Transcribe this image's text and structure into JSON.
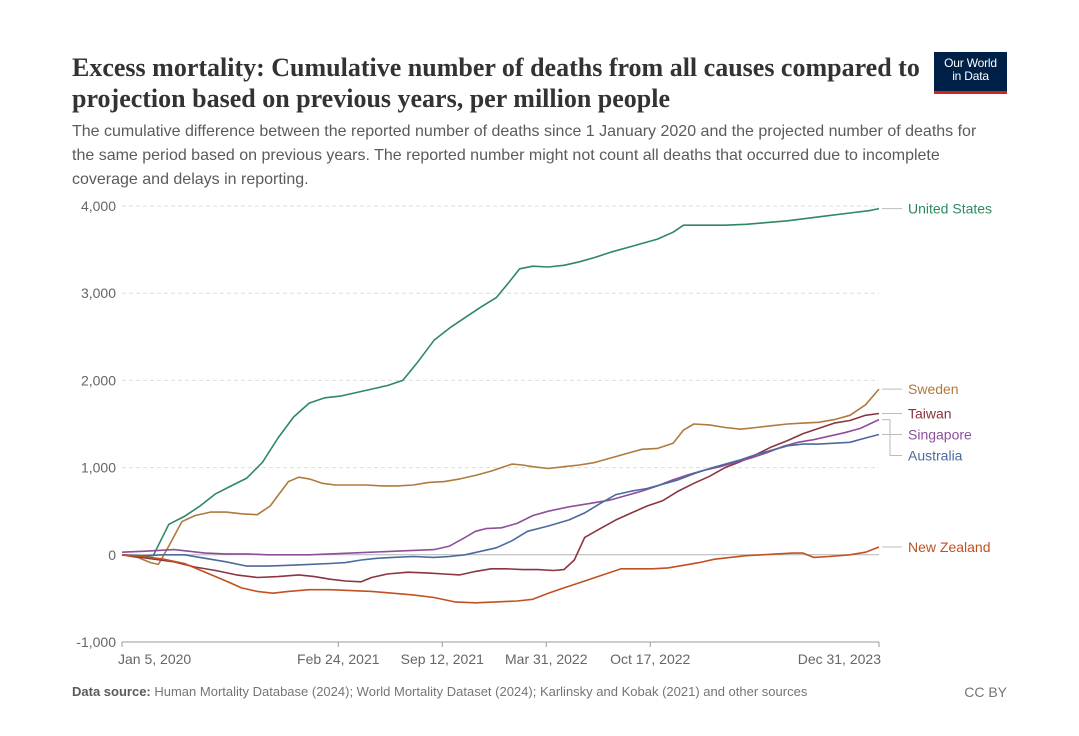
{
  "title": "Excess mortality: Cumulative number of deaths from all causes compared to projection based on previous years, per million people",
  "subtitle": "The cumulative difference between the reported number of deaths since 1 January 2020 and the projected number of deaths for the same period based on previous years. The reported number might not count all deaths that occurred due to incomplete coverage and delays in reporting.",
  "logo": {
    "line1": "Our World",
    "line2": "in Data",
    "bg": "#002147",
    "accent": "#ce261e"
  },
  "footer": {
    "source_label": "Data source:",
    "source_text": " Human Mortality Database (2024); World Mortality Dataset (2024); Karlinsky and Kobak (2021) and other sources",
    "license": "CC BY"
  },
  "chart_data": {
    "type": "line",
    "title": "Excess mortality: Cumulative number of deaths from all causes compared to projection based on previous years, per million people",
    "xlabel": "",
    "ylabel": "",
    "xlim": [
      0,
      1456
    ],
    "ylim": [
      -1000,
      4000
    ],
    "yticks": [
      {
        "value": -1000,
        "label": "-1,000"
      },
      {
        "value": 0,
        "label": "0"
      },
      {
        "value": 1000,
        "label": "1,000"
      },
      {
        "value": 2000,
        "label": "2,000"
      },
      {
        "value": 3000,
        "label": "3,000"
      },
      {
        "value": 4000,
        "label": "4,000"
      }
    ],
    "xticks": [
      {
        "value": 0,
        "label": "Jan 5, 2020"
      },
      {
        "value": 416,
        "label": "Feb 24, 2021"
      },
      {
        "value": 616,
        "label": "Sep 12, 2021"
      },
      {
        "value": 816,
        "label": "Mar 31, 2022"
      },
      {
        "value": 1016,
        "label": "Oct 17, 2022"
      },
      {
        "value": 1456,
        "label": "Dec 31, 2023"
      }
    ],
    "series": [
      {
        "name": "United States",
        "color": "#2e8960",
        "points": [
          [
            0,
            0
          ],
          [
            30,
            -20
          ],
          [
            60,
            -10
          ],
          [
            90,
            350
          ],
          [
            120,
            440
          ],
          [
            150,
            560
          ],
          [
            180,
            700
          ],
          [
            210,
            790
          ],
          [
            240,
            880
          ],
          [
            270,
            1060
          ],
          [
            300,
            1340
          ],
          [
            330,
            1580
          ],
          [
            360,
            1740
          ],
          [
            390,
            1800
          ],
          [
            420,
            1820
          ],
          [
            450,
            1860
          ],
          [
            480,
            1900
          ],
          [
            510,
            1940
          ],
          [
            540,
            2000
          ],
          [
            570,
            2220
          ],
          [
            600,
            2460
          ],
          [
            630,
            2600
          ],
          [
            660,
            2720
          ],
          [
            690,
            2840
          ],
          [
            720,
            2950
          ],
          [
            745,
            3130
          ],
          [
            765,
            3280
          ],
          [
            790,
            3310
          ],
          [
            820,
            3300
          ],
          [
            850,
            3320
          ],
          [
            880,
            3360
          ],
          [
            910,
            3410
          ],
          [
            940,
            3470
          ],
          [
            970,
            3520
          ],
          [
            1000,
            3570
          ],
          [
            1030,
            3620
          ],
          [
            1060,
            3700
          ],
          [
            1080,
            3780
          ],
          [
            1120,
            3780
          ],
          [
            1160,
            3780
          ],
          [
            1200,
            3790
          ],
          [
            1240,
            3810
          ],
          [
            1280,
            3830
          ],
          [
            1320,
            3860
          ],
          [
            1360,
            3890
          ],
          [
            1400,
            3920
          ],
          [
            1440,
            3950
          ],
          [
            1456,
            3970
          ]
        ]
      },
      {
        "name": "Sweden",
        "color": "#b07a3d",
        "points": [
          [
            0,
            0
          ],
          [
            30,
            -30
          ],
          [
            55,
            -90
          ],
          [
            70,
            -110
          ],
          [
            90,
            100
          ],
          [
            115,
            380
          ],
          [
            140,
            450
          ],
          [
            170,
            490
          ],
          [
            200,
            490
          ],
          [
            230,
            470
          ],
          [
            260,
            460
          ],
          [
            285,
            560
          ],
          [
            305,
            720
          ],
          [
            320,
            840
          ],
          [
            340,
            890
          ],
          [
            360,
            870
          ],
          [
            385,
            820
          ],
          [
            410,
            800
          ],
          [
            440,
            800
          ],
          [
            470,
            800
          ],
          [
            500,
            790
          ],
          [
            530,
            790
          ],
          [
            560,
            800
          ],
          [
            590,
            830
          ],
          [
            620,
            840
          ],
          [
            650,
            870
          ],
          [
            680,
            910
          ],
          [
            710,
            960
          ],
          [
            730,
            1000
          ],
          [
            750,
            1040
          ],
          [
            770,
            1030
          ],
          [
            790,
            1010
          ],
          [
            820,
            990
          ],
          [
            850,
            1010
          ],
          [
            880,
            1030
          ],
          [
            910,
            1060
          ],
          [
            940,
            1110
          ],
          [
            970,
            1160
          ],
          [
            1000,
            1210
          ],
          [
            1030,
            1220
          ],
          [
            1060,
            1280
          ],
          [
            1080,
            1430
          ],
          [
            1100,
            1500
          ],
          [
            1130,
            1490
          ],
          [
            1160,
            1460
          ],
          [
            1190,
            1440
          ],
          [
            1220,
            1460
          ],
          [
            1250,
            1480
          ],
          [
            1280,
            1500
          ],
          [
            1310,
            1510
          ],
          [
            1340,
            1520
          ],
          [
            1370,
            1550
          ],
          [
            1400,
            1600
          ],
          [
            1430,
            1720
          ],
          [
            1456,
            1900
          ]
        ]
      },
      {
        "name": "Taiwan",
        "color": "#8c3540",
        "points": [
          [
            0,
            0
          ],
          [
            50,
            -40
          ],
          [
            100,
            -80
          ],
          [
            140,
            -140
          ],
          [
            180,
            -180
          ],
          [
            220,
            -230
          ],
          [
            260,
            -260
          ],
          [
            300,
            -250
          ],
          [
            340,
            -230
          ],
          [
            370,
            -250
          ],
          [
            400,
            -280
          ],
          [
            430,
            -300
          ],
          [
            460,
            -310
          ],
          [
            480,
            -260
          ],
          [
            510,
            -220
          ],
          [
            550,
            -200
          ],
          [
            590,
            -210
          ],
          [
            620,
            -220
          ],
          [
            650,
            -230
          ],
          [
            680,
            -190
          ],
          [
            710,
            -160
          ],
          [
            740,
            -160
          ],
          [
            770,
            -170
          ],
          [
            800,
            -170
          ],
          [
            830,
            -180
          ],
          [
            850,
            -170
          ],
          [
            870,
            -60
          ],
          [
            890,
            200
          ],
          [
            920,
            300
          ],
          [
            950,
            400
          ],
          [
            980,
            480
          ],
          [
            1010,
            560
          ],
          [
            1040,
            620
          ],
          [
            1070,
            730
          ],
          [
            1100,
            820
          ],
          [
            1130,
            900
          ],
          [
            1160,
            1000
          ],
          [
            1190,
            1070
          ],
          [
            1220,
            1150
          ],
          [
            1250,
            1240
          ],
          [
            1280,
            1310
          ],
          [
            1310,
            1390
          ],
          [
            1340,
            1450
          ],
          [
            1370,
            1510
          ],
          [
            1400,
            1540
          ],
          [
            1430,
            1600
          ],
          [
            1456,
            1620
          ]
        ]
      },
      {
        "name": "Singapore",
        "color": "#8e4e9c",
        "points": [
          [
            0,
            30
          ],
          [
            40,
            40
          ],
          [
            70,
            50
          ],
          [
            100,
            60
          ],
          [
            130,
            40
          ],
          [
            160,
            20
          ],
          [
            200,
            10
          ],
          [
            240,
            10
          ],
          [
            280,
            0
          ],
          [
            320,
            0
          ],
          [
            360,
            0
          ],
          [
            400,
            10
          ],
          [
            440,
            20
          ],
          [
            480,
            30
          ],
          [
            520,
            40
          ],
          [
            560,
            50
          ],
          [
            600,
            60
          ],
          [
            630,
            100
          ],
          [
            660,
            200
          ],
          [
            680,
            270
          ],
          [
            700,
            300
          ],
          [
            730,
            310
          ],
          [
            760,
            360
          ],
          [
            790,
            450
          ],
          [
            820,
            500
          ],
          [
            860,
            550
          ],
          [
            900,
            590
          ],
          [
            940,
            630
          ],
          [
            970,
            680
          ],
          [
            1000,
            730
          ],
          [
            1030,
            790
          ],
          [
            1060,
            860
          ],
          [
            1090,
            920
          ],
          [
            1120,
            970
          ],
          [
            1150,
            1010
          ],
          [
            1180,
            1060
          ],
          [
            1210,
            1110
          ],
          [
            1240,
            1170
          ],
          [
            1270,
            1240
          ],
          [
            1300,
            1290
          ],
          [
            1330,
            1320
          ],
          [
            1360,
            1360
          ],
          [
            1390,
            1400
          ],
          [
            1420,
            1450
          ],
          [
            1456,
            1550
          ]
        ]
      },
      {
        "name": "Australia",
        "color": "#4c6a9c",
        "points": [
          [
            0,
            0
          ],
          [
            40,
            -10
          ],
          [
            80,
            0
          ],
          [
            120,
            0
          ],
          [
            160,
            -40
          ],
          [
            200,
            -80
          ],
          [
            240,
            -130
          ],
          [
            280,
            -130
          ],
          [
            320,
            -120
          ],
          [
            360,
            -110
          ],
          [
            400,
            -100
          ],
          [
            430,
            -90
          ],
          [
            460,
            -60
          ],
          [
            490,
            -40
          ],
          [
            520,
            -30
          ],
          [
            560,
            -20
          ],
          [
            600,
            -30
          ],
          [
            630,
            -20
          ],
          [
            660,
            0
          ],
          [
            690,
            40
          ],
          [
            720,
            80
          ],
          [
            750,
            160
          ],
          [
            780,
            270
          ],
          [
            820,
            330
          ],
          [
            860,
            400
          ],
          [
            890,
            480
          ],
          [
            920,
            590
          ],
          [
            950,
            690
          ],
          [
            980,
            730
          ],
          [
            1010,
            760
          ],
          [
            1040,
            810
          ],
          [
            1070,
            860
          ],
          [
            1100,
            930
          ],
          [
            1130,
            990
          ],
          [
            1160,
            1040
          ],
          [
            1190,
            1090
          ],
          [
            1220,
            1150
          ],
          [
            1250,
            1200
          ],
          [
            1280,
            1250
          ],
          [
            1310,
            1270
          ],
          [
            1340,
            1270
          ],
          [
            1370,
            1280
          ],
          [
            1400,
            1290
          ],
          [
            1430,
            1340
          ],
          [
            1456,
            1380
          ]
        ]
      },
      {
        "name": "New Zealand",
        "color": "#c15121",
        "points": [
          [
            0,
            0
          ],
          [
            40,
            -20
          ],
          [
            80,
            -50
          ],
          [
            120,
            -100
          ],
          [
            160,
            -200
          ],
          [
            200,
            -300
          ],
          [
            230,
            -380
          ],
          [
            260,
            -420
          ],
          [
            290,
            -440
          ],
          [
            320,
            -420
          ],
          [
            360,
            -400
          ],
          [
            400,
            -400
          ],
          [
            440,
            -410
          ],
          [
            480,
            -420
          ],
          [
            520,
            -440
          ],
          [
            560,
            -460
          ],
          [
            600,
            -490
          ],
          [
            640,
            -540
          ],
          [
            680,
            -550
          ],
          [
            720,
            -540
          ],
          [
            760,
            -530
          ],
          [
            790,
            -510
          ],
          [
            820,
            -440
          ],
          [
            850,
            -380
          ],
          [
            880,
            -320
          ],
          [
            910,
            -260
          ],
          [
            940,
            -200
          ],
          [
            960,
            -160
          ],
          [
            990,
            -160
          ],
          [
            1020,
            -160
          ],
          [
            1050,
            -150
          ],
          [
            1080,
            -120
          ],
          [
            1110,
            -90
          ],
          [
            1140,
            -50
          ],
          [
            1170,
            -30
          ],
          [
            1200,
            -10
          ],
          [
            1230,
            0
          ],
          [
            1260,
            10
          ],
          [
            1290,
            20
          ],
          [
            1310,
            20
          ],
          [
            1330,
            -30
          ],
          [
            1360,
            -20
          ],
          [
            1400,
            0
          ],
          [
            1430,
            30
          ],
          [
            1456,
            90
          ]
        ]
      }
    ]
  }
}
